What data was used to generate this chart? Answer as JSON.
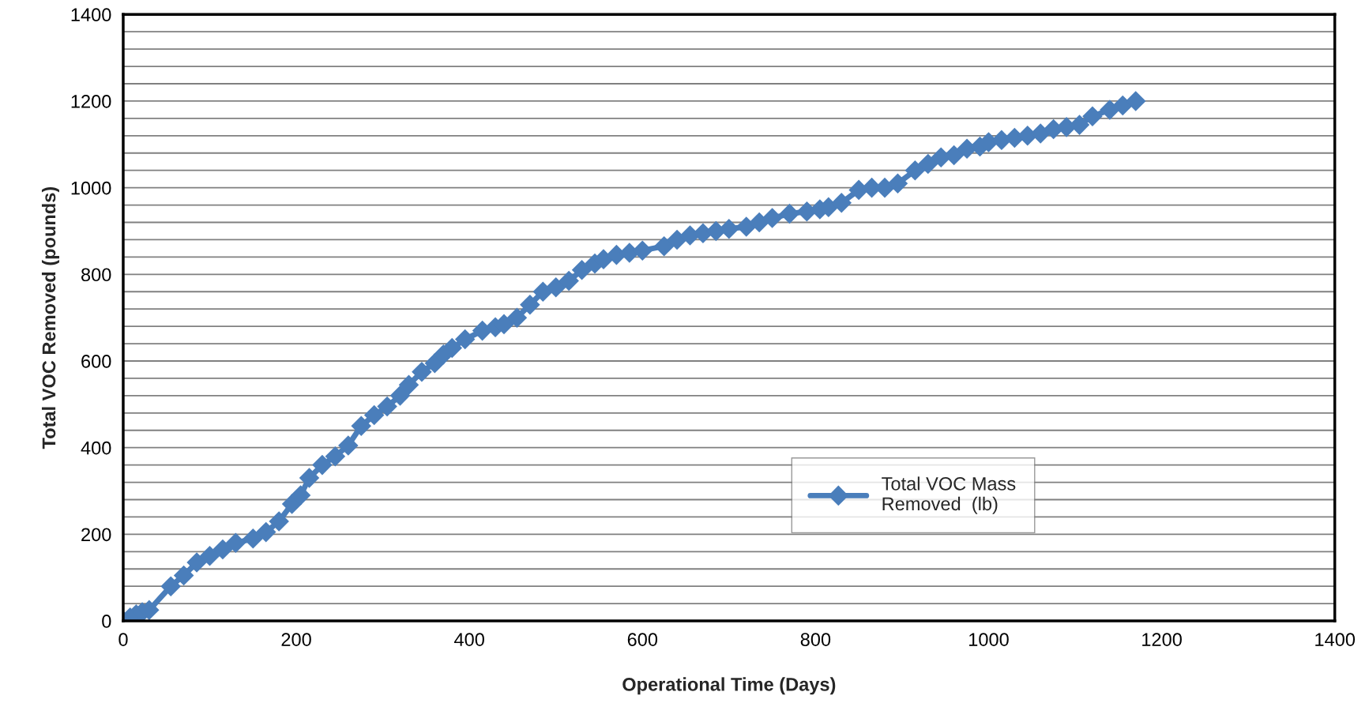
{
  "chart_data": {
    "type": "line",
    "xlabel": "Operational Time (Days)",
    "ylabel": "Total VOC Removed (pounds)",
    "xlim": [
      0,
      1400
    ],
    "xticks": [
      0,
      200,
      400,
      600,
      800,
      1000,
      1200,
      1400
    ],
    "ylim": [
      0,
      1400
    ],
    "yticks": [
      0,
      {
        "value": 40,
        "label": null
      },
      {
        "value": 80,
        "label": null
      },
      {
        "value": 120,
        "label": null
      },
      {
        "value": 160,
        "label": null
      },
      200,
      {
        "value": 240,
        "label": null
      },
      {
        "value": 280,
        "label": null
      },
      {
        "value": 320,
        "label": null
      },
      {
        "value": 360,
        "label": null
      },
      400,
      {
        "value": 440,
        "label": null
      },
      {
        "value": 480,
        "label": null
      },
      {
        "value": 520,
        "label": null
      },
      {
        "value": 560,
        "label": null
      },
      600,
      {
        "value": 640,
        "label": null
      },
      {
        "value": 680,
        "label": null
      },
      {
        "value": 720,
        "label": null
      },
      {
        "value": 760,
        "label": null
      },
      800,
      {
        "value": 840,
        "label": null
      },
      {
        "value": 880,
        "label": null
      },
      {
        "value": 920,
        "label": null
      },
      {
        "value": 960,
        "label": null
      },
      1000,
      {
        "value": 1040,
        "label": null
      },
      {
        "value": 1080,
        "label": null
      },
      {
        "value": 1120,
        "label": null
      },
      {
        "value": 1160,
        "label": null
      },
      1200,
      {
        "value": 1240,
        "label": null
      },
      {
        "value": 1280,
        "label": null
      },
      {
        "value": 1320,
        "label": null
      },
      {
        "value": 1360,
        "label": null
      },
      1400
    ],
    "grid": "y",
    "legend": "bottom right",
    "marker": "diamond",
    "line_style": "solid",
    "x": [
      0,
      8,
      15,
      22,
      30,
      55,
      70,
      85,
      100,
      115,
      130,
      150,
      165,
      180,
      195,
      205,
      215,
      230,
      245,
      260,
      275,
      290,
      305,
      320,
      330,
      345,
      360,
      370,
      380,
      395,
      415,
      430,
      440,
      455,
      470,
      485,
      500,
      515,
      530,
      545,
      555,
      570,
      585,
      600,
      625,
      640,
      655,
      670,
      685,
      700,
      720,
      735,
      750,
      770,
      790,
      805,
      815,
      830,
      850,
      865,
      880,
      895,
      915,
      930,
      945,
      960,
      975,
      990,
      1000,
      1015,
      1030,
      1045,
      1060,
      1075,
      1090,
      1105,
      1120,
      1140,
      1155,
      1170
    ],
    "series": [
      {
        "name": "Total VOC Mass\nRemoved  (lb)",
        "color": "#4a7ebb",
        "values": [
          0,
          8,
          15,
          20,
          25,
          80,
          105,
          135,
          150,
          165,
          180,
          190,
          205,
          230,
          270,
          290,
          330,
          360,
          380,
          405,
          450,
          475,
          495,
          520,
          545,
          575,
          595,
          615,
          630,
          650,
          670,
          678,
          685,
          700,
          730,
          760,
          770,
          785,
          810,
          825,
          835,
          845,
          850,
          855,
          865,
          880,
          890,
          895,
          900,
          905,
          910,
          920,
          930,
          940,
          945,
          950,
          955,
          965,
          995,
          1000,
          1000,
          1010,
          1040,
          1055,
          1070,
          1075,
          1090,
          1095,
          1105,
          1110,
          1115,
          1120,
          1125,
          1135,
          1140,
          1145,
          1165,
          1180,
          1190,
          1200
        ]
      }
    ]
  }
}
